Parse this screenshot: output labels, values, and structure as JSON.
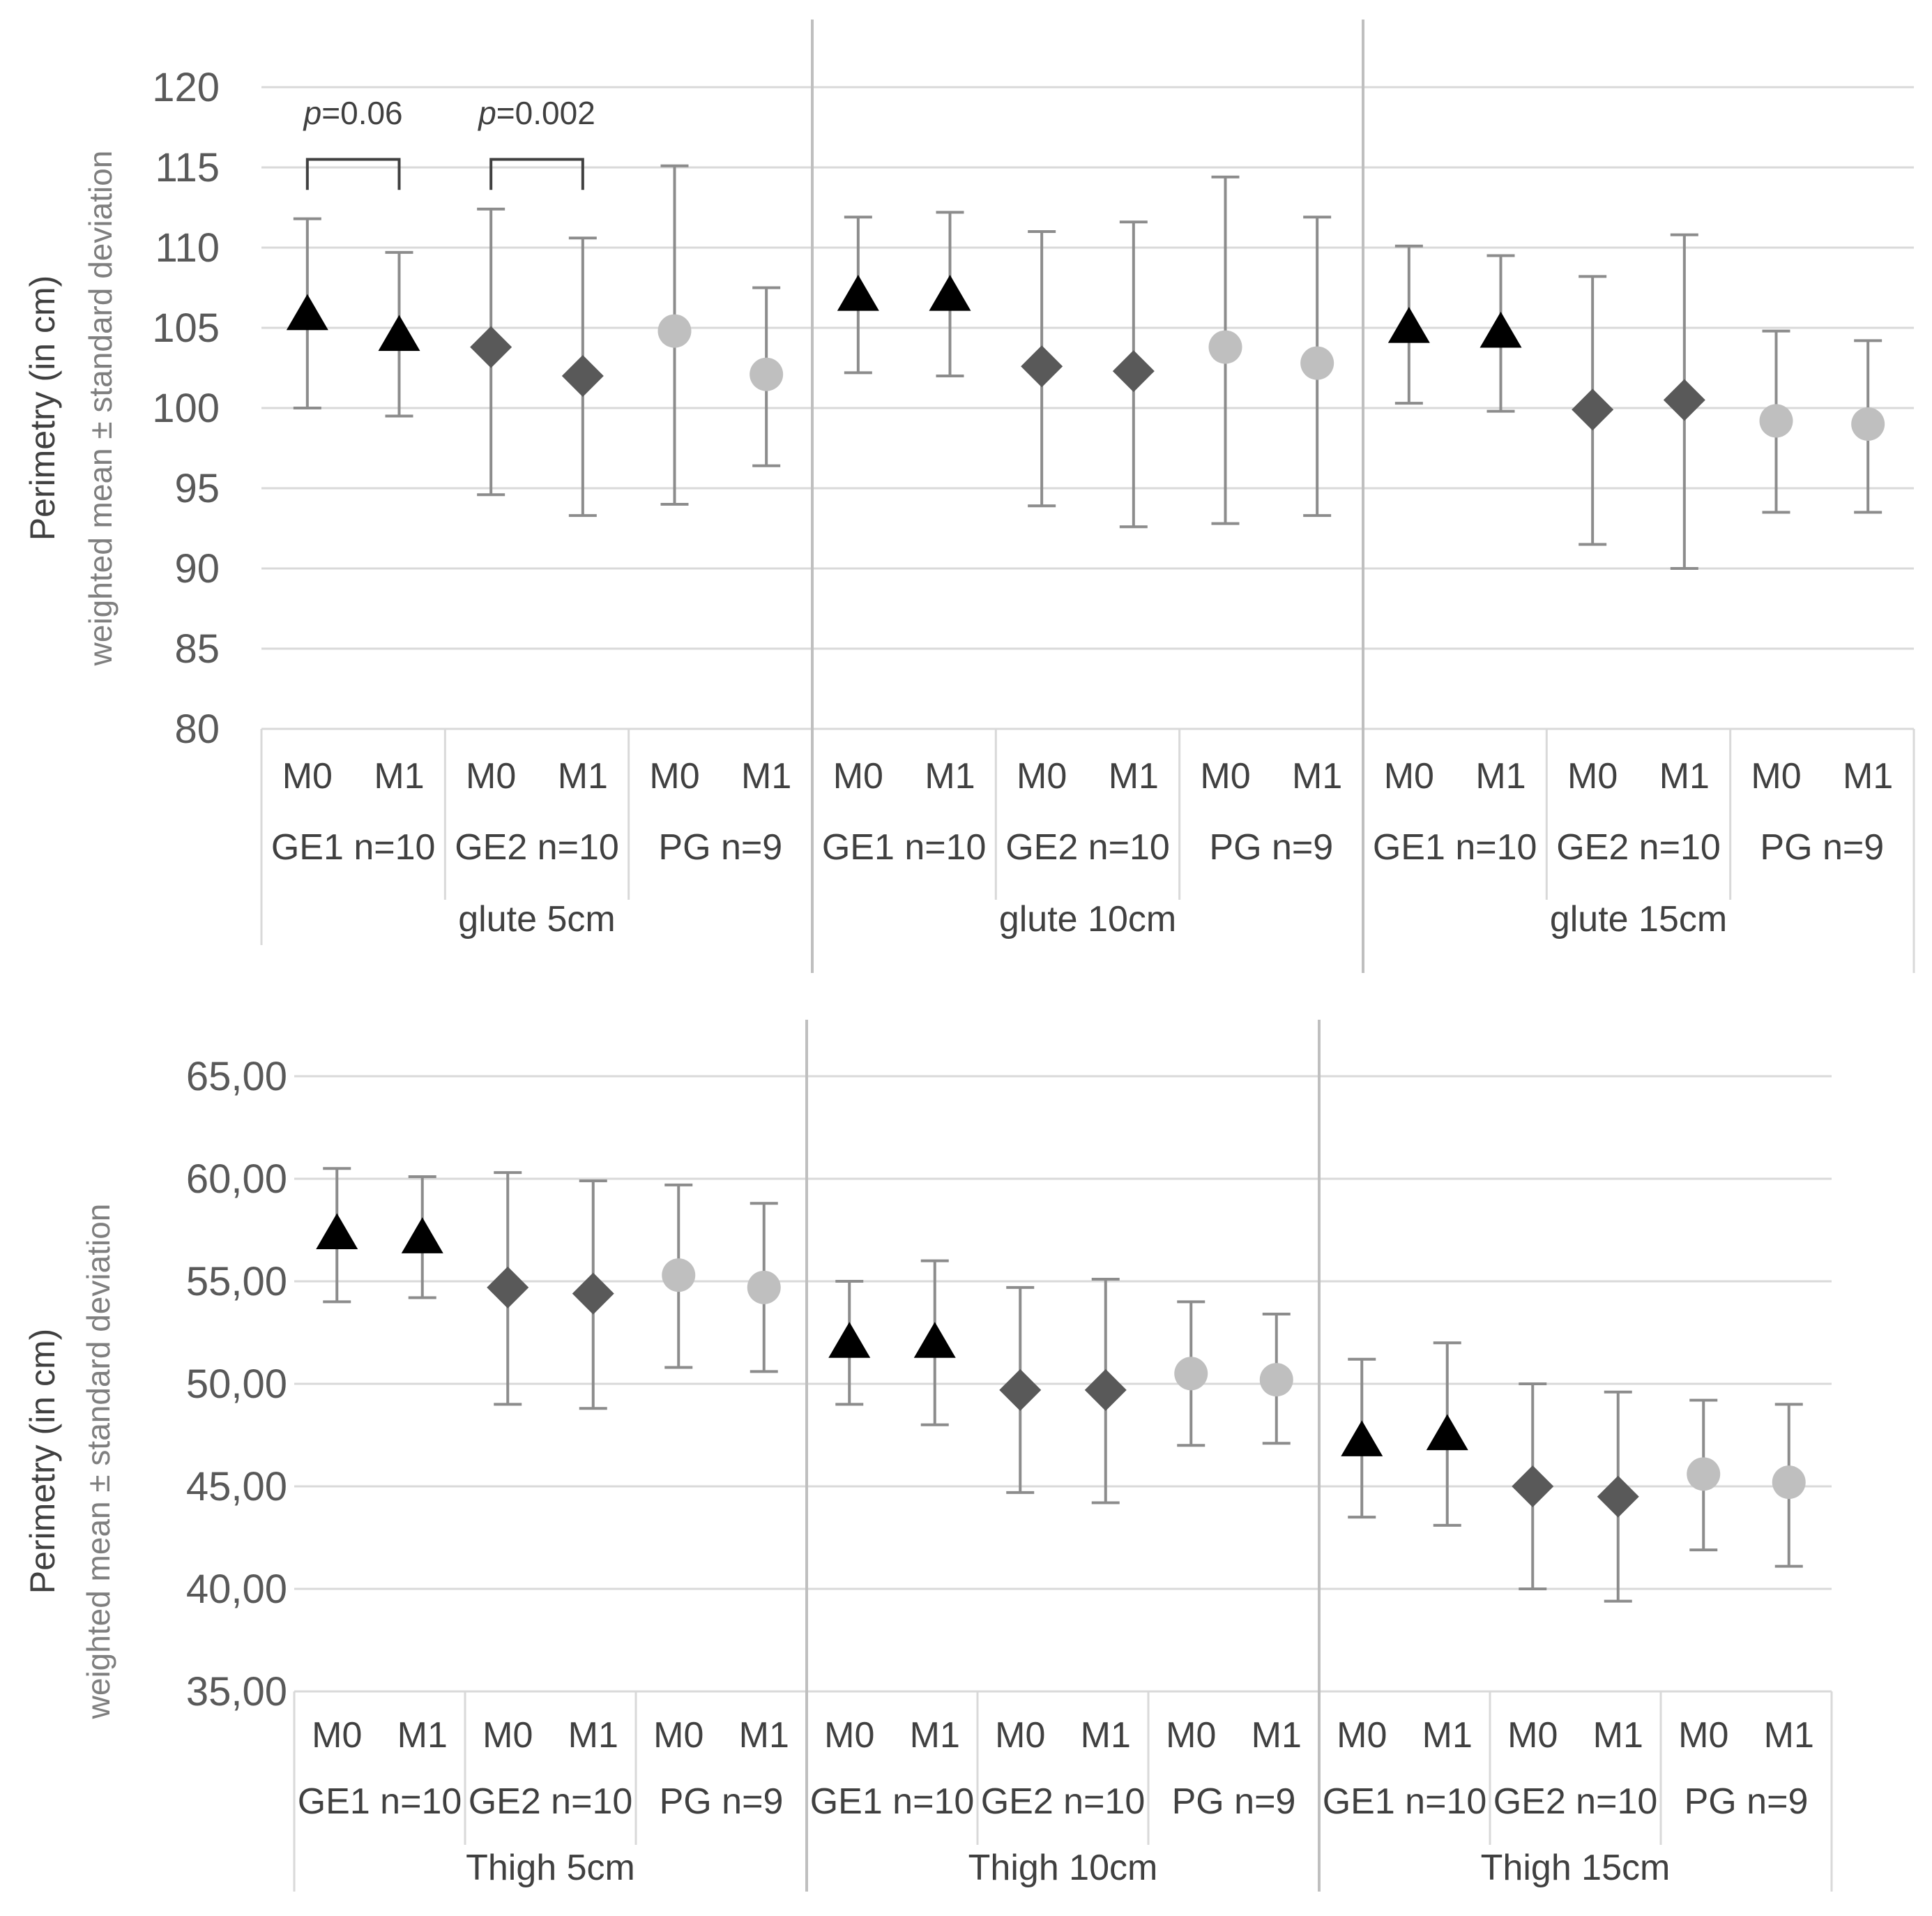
{
  "chart_data": [
    {
      "type": "scatter",
      "title": "",
      "ylabel": "Perimetry (in cm)",
      "ylabel2": "weighted mean ± standard deviation",
      "ylim": [
        80,
        120
      ],
      "yticks": [
        "80",
        "85",
        "90",
        "95",
        "100",
        "105",
        "110",
        "115",
        "120"
      ],
      "grid": true,
      "sections": [
        "glute 5cm",
        "glute 10cm",
        "glute 15cm"
      ],
      "groups": [
        "GE1 n=10",
        "GE2 n=10",
        "PG n=9"
      ],
      "moments": [
        "M0",
        "M1"
      ],
      "series": [
        {
          "name": "GE1 n=10",
          "marker": "triangle",
          "color": "#000000",
          "mean": [
            105.8,
            104.5,
            107.0,
            107.0,
            105.0,
            104.7
          ],
          "sd_low": [
            100.0,
            99.5,
            102.2,
            102.0,
            100.3,
            99.8
          ],
          "sd_high": [
            111.8,
            109.7,
            111.9,
            112.2,
            110.1,
            109.5
          ]
        },
        {
          "name": "GE2 n=10",
          "marker": "diamond",
          "color": "#595959",
          "mean": [
            103.8,
            102.0,
            102.6,
            102.3,
            99.9,
            100.5
          ],
          "sd_low": [
            94.6,
            93.3,
            93.9,
            92.6,
            91.5,
            90.0
          ],
          "sd_high": [
            112.4,
            110.6,
            111.0,
            111.6,
            108.2,
            110.8
          ]
        },
        {
          "name": "PG n=9",
          "marker": "circle",
          "color": "#bfbfbf",
          "mean": [
            104.8,
            102.1,
            103.8,
            102.8,
            99.2,
            99.0
          ],
          "sd_low": [
            94.0,
            96.4,
            92.8,
            93.3,
            93.5,
            93.5
          ],
          "sd_high": [
            115.1,
            107.5,
            114.4,
            111.9,
            104.8,
            104.2
          ]
        }
      ],
      "annotations": [
        {
          "label": "p=0.06",
          "group": "GE1 n=10",
          "section": "glute 5cm"
        },
        {
          "label": "p=0.002",
          "group": "GE2 n=10",
          "section": "glute 5cm"
        }
      ]
    },
    {
      "type": "scatter",
      "title": "",
      "ylabel": "Perimetry (in cm)",
      "ylabel2": "weighted mean ± standard deviation",
      "ylim": [
        35,
        65
      ],
      "yticks": [
        "35,00",
        "40,00",
        "45,00",
        "50,00",
        "55,00",
        "60,00",
        "65,00"
      ],
      "grid": true,
      "sections": [
        "Thigh 5cm",
        "Thigh 10cm",
        "Thigh 15cm"
      ],
      "groups": [
        "GE1 n=10",
        "GE2 n=10",
        "PG n=9"
      ],
      "moments": [
        "M0",
        "M1"
      ],
      "series": [
        {
          "name": "GE1 n=10",
          "marker": "triangle",
          "color": "#000000",
          "mean": [
            57.3,
            57.1,
            52.0,
            52.0,
            47.2,
            47.5
          ],
          "sd_low": [
            54.0,
            54.2,
            49.0,
            48.0,
            43.5,
            43.1
          ],
          "sd_high": [
            60.5,
            60.1,
            55.0,
            56.0,
            51.2,
            52.0
          ]
        },
        {
          "name": "GE2 n=10",
          "marker": "diamond",
          "color": "#595959",
          "mean": [
            54.7,
            54.4,
            49.7,
            49.7,
            45.0,
            44.5
          ],
          "sd_low": [
            49.0,
            48.8,
            44.7,
            44.2,
            40.0,
            39.4
          ],
          "sd_high": [
            60.3,
            59.9,
            54.7,
            55.1,
            50.0,
            49.6
          ]
        },
        {
          "name": "PG n=9",
          "marker": "circle",
          "color": "#bfbfbf",
          "mean": [
            55.3,
            54.7,
            50.5,
            50.2,
            45.6,
            45.2
          ],
          "sd_low": [
            50.8,
            50.6,
            47.0,
            47.1,
            41.9,
            41.1
          ],
          "sd_high": [
            59.7,
            58.8,
            54.0,
            53.4,
            49.2,
            49.0
          ]
        }
      ],
      "annotations": []
    }
  ]
}
